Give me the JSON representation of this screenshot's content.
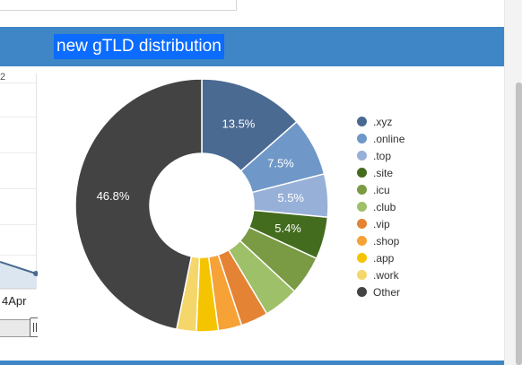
{
  "header": {
    "title": "new gTLD distribution"
  },
  "left_chart": {
    "top_label": "2",
    "date_label": "4Apr"
  },
  "chart_data": {
    "type": "pie",
    "labels": [
      ".xyz",
      ".online",
      ".top",
      ".site",
      ".icu",
      ".club",
      ".vip",
      ".shop",
      ".app",
      ".work",
      "Other"
    ],
    "values": [
      13.5,
      7.5,
      5.5,
      5.4,
      5.0,
      4.5,
      3.5,
      3.0,
      2.8,
      2.5,
      46.8
    ],
    "data_labels": [
      "13.5%",
      "7.5%",
      "5.5%",
      "5.4%",
      "",
      "",
      "",
      "",
      "",
      "",
      "46.8%"
    ],
    "colors": [
      "#4a6a92",
      "#6f98c8",
      "#97b0d8",
      "#436c1e",
      "#7a9a44",
      "#9ec068",
      "#e58334",
      "#f6a236",
      "#f5c400",
      "#f4d66a",
      "#434343"
    ],
    "hole": true,
    "legend_position": "right"
  }
}
